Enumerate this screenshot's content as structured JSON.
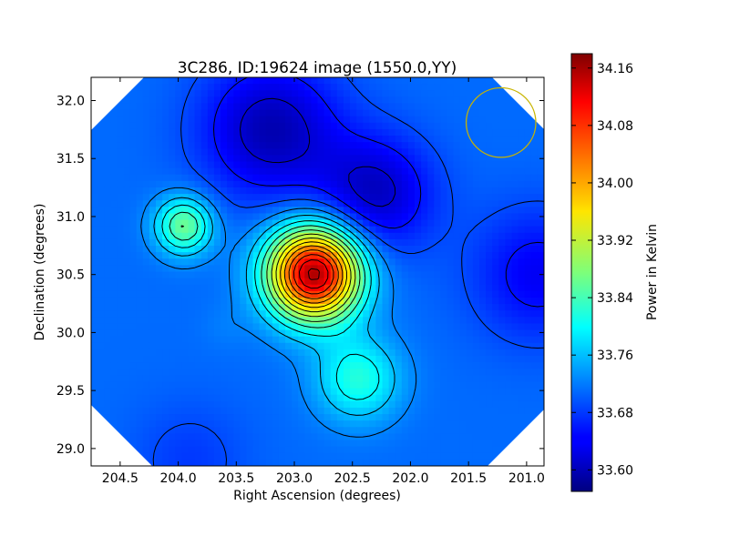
{
  "chart_data": {
    "type": "heatmap",
    "title": "3C286, ID:19624 image (1550.0,YY)",
    "xlabel": "Right Ascension (degrees)",
    "ylabel": "Declination (degrees)",
    "xlim": [
      204.75,
      200.85
    ],
    "ylim": [
      28.85,
      32.2
    ],
    "x_ticks": [
      204.5,
      204.0,
      203.5,
      203.0,
      202.5,
      202.0,
      201.5,
      201.0
    ],
    "x_tick_labels": [
      "204.5",
      "204.0",
      "203.5",
      "203.0",
      "202.5",
      "202.0",
      "201.5",
      "201.0"
    ],
    "y_ticks": [
      29.0,
      29.5,
      30.0,
      30.5,
      31.0,
      31.5,
      32.0
    ],
    "y_tick_labels": [
      "29.0",
      "29.5",
      "30.0",
      "30.5",
      "31.0",
      "31.5",
      "32.0"
    ],
    "colormap": "jet",
    "colorbar": {
      "label": "Power in Kelvin",
      "vmin": 33.57,
      "vmax": 34.18,
      "ticks": [
        33.6,
        33.68,
        33.76,
        33.84,
        33.92,
        34.0,
        34.08,
        34.16
      ],
      "tick_labels": [
        "33.60",
        "33.68",
        "33.76",
        "33.84",
        "33.92",
        "34.00",
        "34.08",
        "34.16"
      ]
    },
    "contours": true,
    "features": [
      {
        "ra": 202.83,
        "dec": 30.51,
        "value": 34.16
      },
      {
        "ra": 203.95,
        "dec": 30.92,
        "value": 33.87
      },
      {
        "ra": 202.45,
        "dec": 29.6,
        "value": 33.82
      },
      {
        "ra": 203.6,
        "dec": 30.05,
        "value": 33.72
      },
      {
        "ra": 203.2,
        "dec": 31.75,
        "value": 33.6
      },
      {
        "ra": 202.3,
        "dec": 31.2,
        "value": 33.61
      },
      {
        "ra": 200.9,
        "dec": 30.5,
        "value": 33.64
      },
      {
        "ra": 203.9,
        "dec": 28.9,
        "value": 33.68
      }
    ],
    "beam_circle": {
      "ra": 201.22,
      "dec": 31.81,
      "radius_deg": 0.3,
      "color": "#c8b400"
    }
  }
}
